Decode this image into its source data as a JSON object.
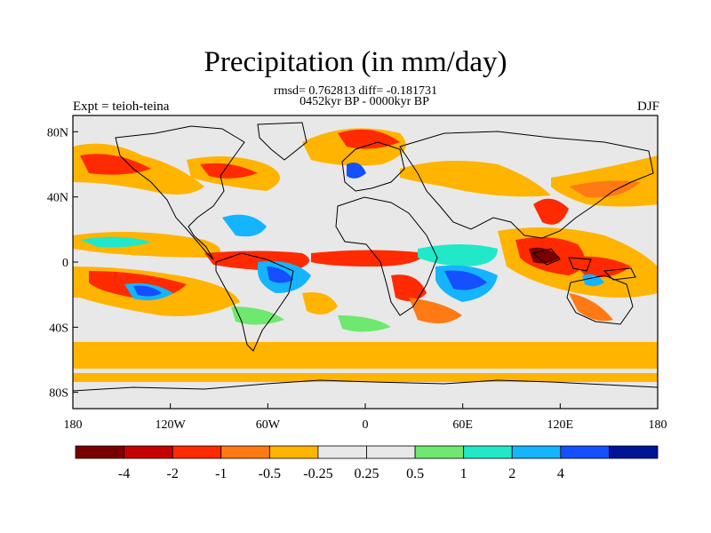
{
  "title": "Precipitation (in mm/day)",
  "stats": "rmsd= 0.762813 diff= -0.181731",
  "period": "0452kyr BP - 0000kyr BP",
  "experiment": "Expt = teioh-teina",
  "season": "DJF",
  "map": {
    "projection": "cylindrical-equidistant",
    "lon_range": [
      -180,
      180
    ],
    "lat_range": [
      -90,
      90
    ],
    "x_ticks": [
      "180",
      "120W",
      "60W",
      "0",
      "60E",
      "120E",
      "180"
    ],
    "y_ticks": [
      "80N",
      "40N",
      "0",
      "40S",
      "80S"
    ]
  },
  "colorbar": {
    "colors": [
      "#7a0000",
      "#c40000",
      "#ff2a00",
      "#ff7a14",
      "#ffb400",
      "#e8e8e8",
      "#e8e8e8",
      "#6ee86e",
      "#20e8c8",
      "#14b4ff",
      "#1450ff",
      "#001496"
    ],
    "labels": [
      "-4",
      "-2",
      "-1",
      "-0.5",
      "-0.25",
      "0.25",
      "0.5",
      "1",
      "2",
      "4"
    ]
  }
}
